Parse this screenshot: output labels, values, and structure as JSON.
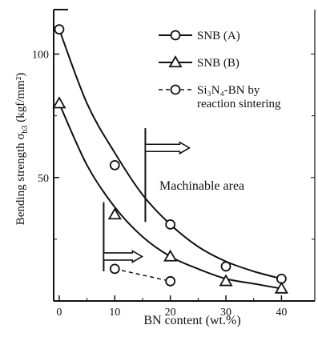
{
  "chart_data": {
    "type": "scatter",
    "xlabel": "BN content (wt.%)",
    "ylabel_main": "Bending strength σ",
    "ylabel_sub": "b3",
    "ylabel_unit": " (kgf/mm²)",
    "xticks": [
      "0",
      "10",
      "20",
      "30",
      "40"
    ],
    "yticks": [
      "50",
      "100"
    ],
    "xlim": [
      -1,
      46
    ],
    "ylim": [
      0,
      118
    ],
    "series": [
      {
        "name": "SNB (A)",
        "marker": "circle",
        "line": "solid",
        "points": [
          [
            0,
            110
          ],
          [
            10,
            55
          ],
          [
            20,
            31
          ],
          [
            30,
            14
          ],
          [
            40,
            9
          ]
        ],
        "fit": [
          [
            0,
            110
          ],
          [
            5,
            80
          ],
          [
            10,
            60
          ],
          [
            15,
            43
          ],
          [
            20,
            31
          ],
          [
            25,
            22
          ],
          [
            30,
            16
          ],
          [
            35,
            12
          ],
          [
            40,
            9
          ]
        ]
      },
      {
        "name": "SNB (B)",
        "marker": "triangle",
        "line": "solid",
        "points": [
          [
            0,
            80
          ],
          [
            10,
            35
          ],
          [
            20,
            18
          ],
          [
            30,
            8
          ],
          [
            40,
            5
          ]
        ],
        "fit": [
          [
            0,
            80
          ],
          [
            5,
            55
          ],
          [
            10,
            38
          ],
          [
            15,
            26
          ],
          [
            20,
            18
          ],
          [
            25,
            13
          ],
          [
            30,
            9
          ],
          [
            35,
            7
          ],
          [
            40,
            5
          ]
        ]
      },
      {
        "name": "Si₃N₄-BN by",
        "name2": "reaction sintering",
        "marker": "circle",
        "line": "dashed",
        "points": [
          [
            10,
            13
          ],
          [
            20,
            8
          ]
        ]
      }
    ],
    "annotation": "Machinable area"
  }
}
